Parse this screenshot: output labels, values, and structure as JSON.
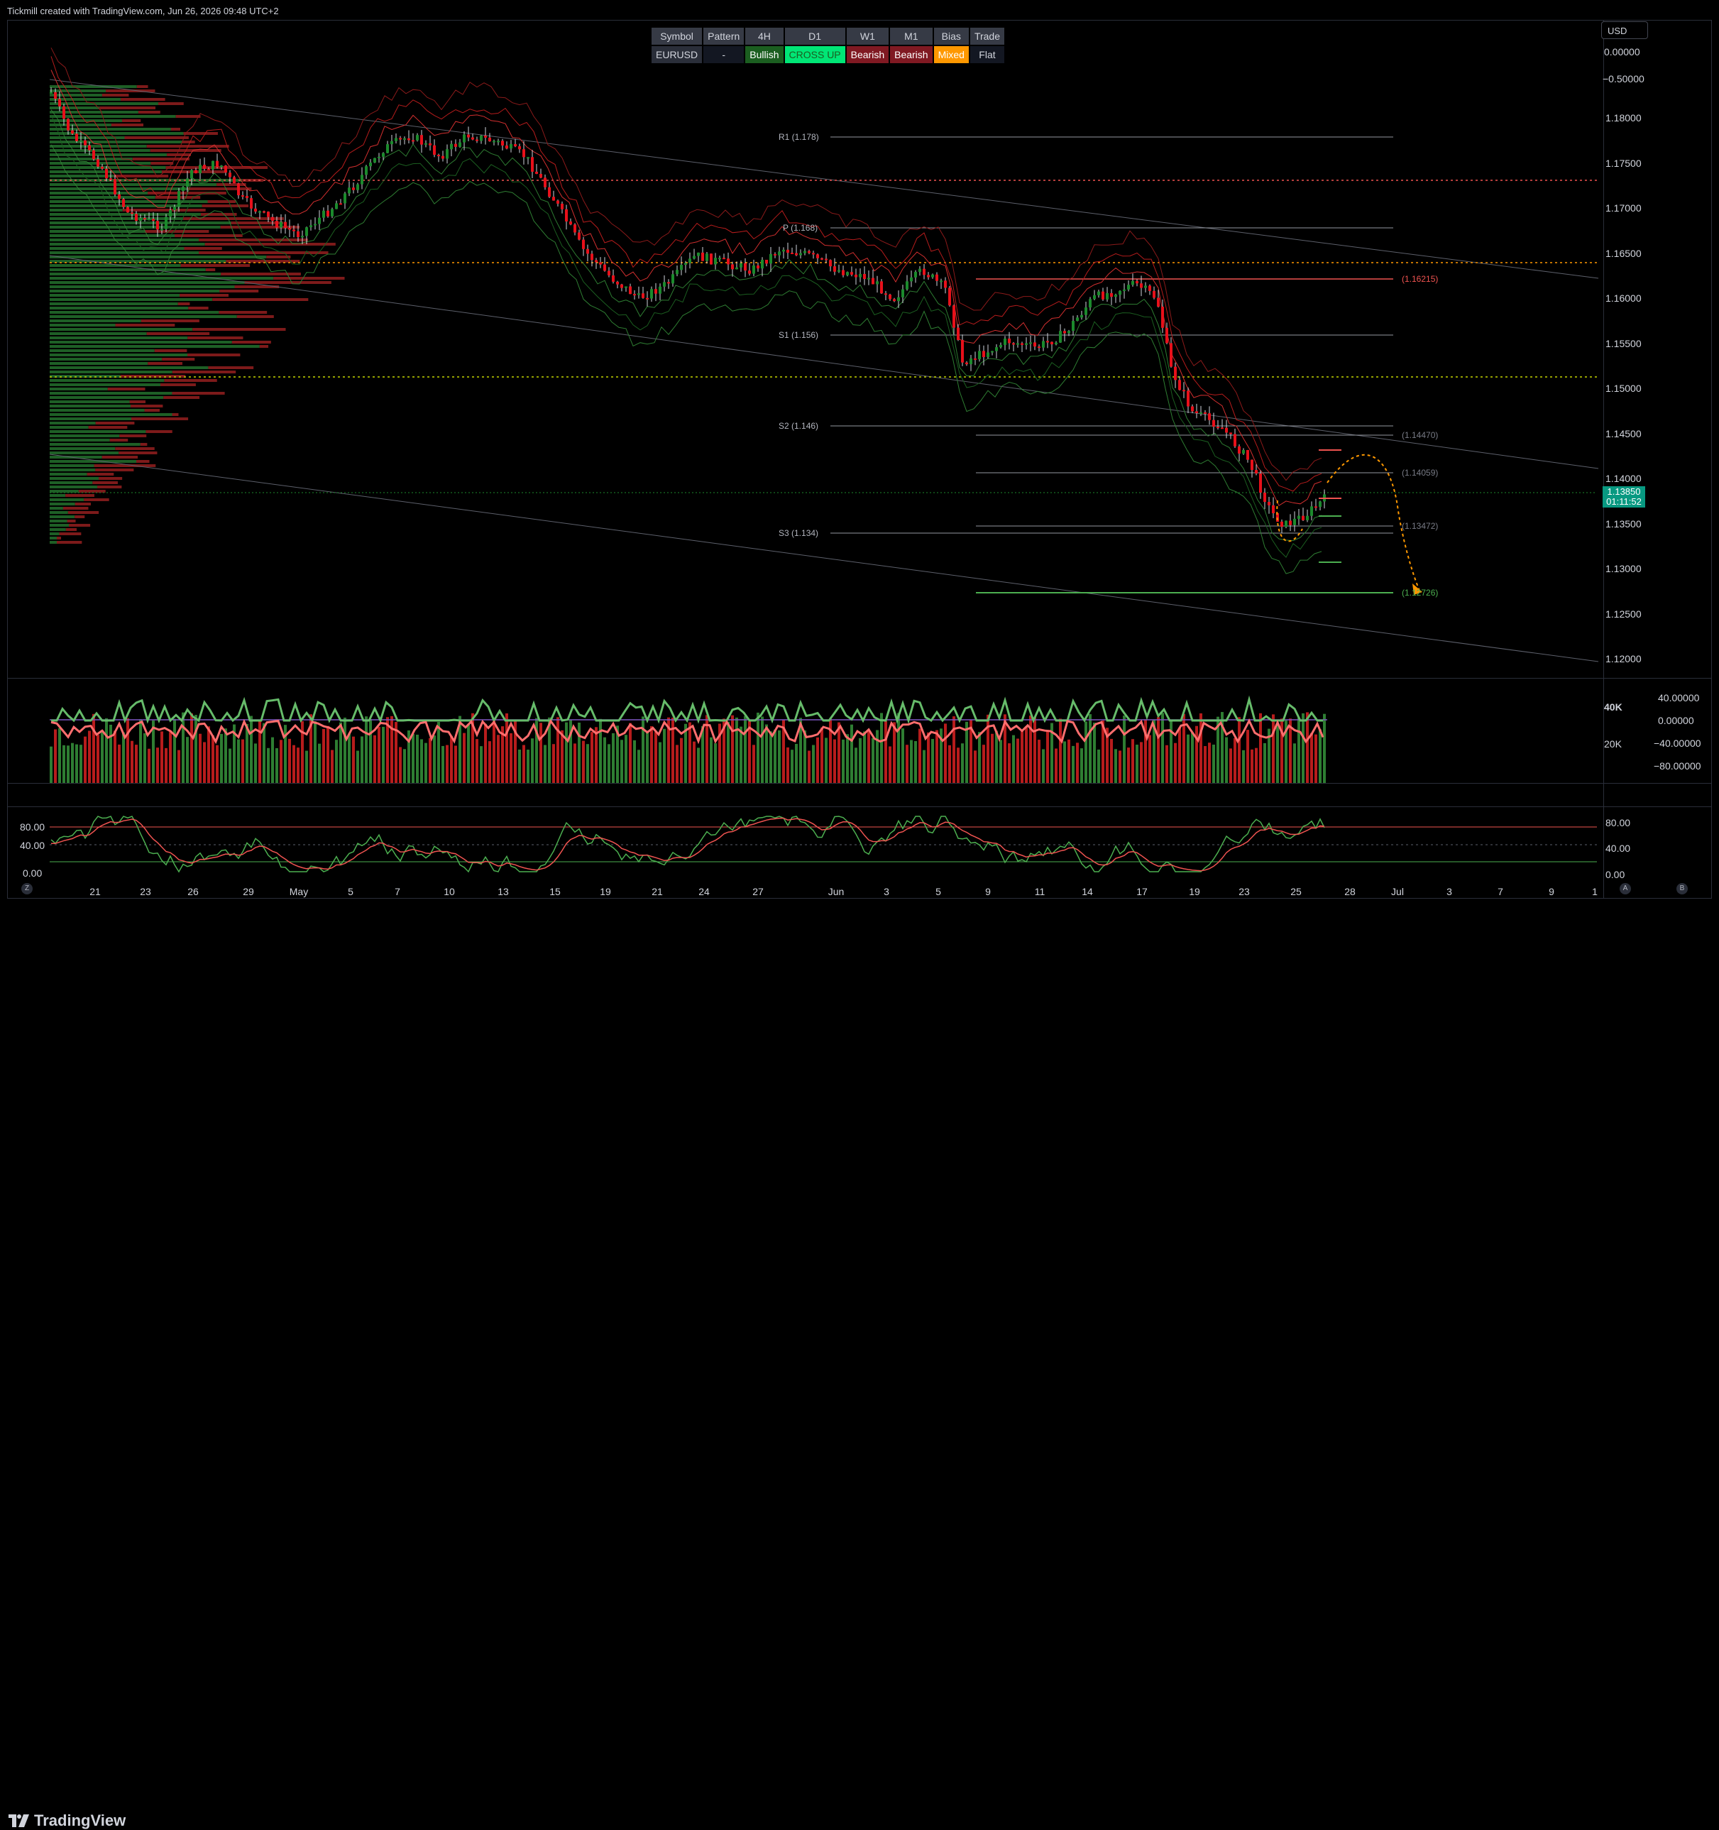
{
  "header": {
    "title": "Tickmill created with TradingView.com, Jun 26, 2026 09:48 UTC+2"
  },
  "currency_button": "USD",
  "status_table": {
    "headers": [
      "Symbol",
      "Pattern",
      "4H",
      "D1",
      "W1",
      "M1",
      "Bias",
      "Trade"
    ],
    "values": [
      "EURUSD",
      "-",
      "Bullish",
      "CROSS UP",
      "Bearish",
      "Bearish",
      "Mixed",
      "Flat"
    ]
  },
  "main_pane": {
    "price_ticks": [
      "0.00000",
      "−0.50000",
      "1.18000",
      "1.17500",
      "1.17000",
      "1.16500",
      "1.16000",
      "1.15500",
      "1.15000",
      "1.14500",
      "1.14000",
      "1.13500",
      "1.13000",
      "1.12500",
      "1.12000"
    ],
    "pivot_labels": {
      "r1": "R1 (1.178)",
      "p": "P (1.168)",
      "s1": "S1 (1.156)",
      "s2": "S2 (1.146)",
      "s3": "S3 (1.134)"
    },
    "level_labels": {
      "l1": "(1.16215)",
      "l2": "(1.14470)",
      "l3": "(1.14059)",
      "l4": "(1.13472)",
      "l5": "(1.12726)"
    },
    "current_price": "1.13850",
    "countdown": "01:11:52",
    "colors": {
      "up": "#26a69a",
      "down": "#ef5350",
      "bull_candle": "#1b8a2c",
      "bear_candle": "#e8101a"
    }
  },
  "volume_pane": {
    "scale_label": "40K",
    "scale_label2": "20K",
    "right_ticks": [
      "40.00000",
      "0.00000",
      "−40.00000",
      "−80.00000"
    ]
  },
  "stoch_pane": {
    "left_ticks": [
      "80.00",
      "40.00",
      "0.00"
    ],
    "right_ticks": [
      "80.00",
      "40.00",
      "0.00"
    ]
  },
  "time_axis": [
    "21",
    "23",
    "26",
    "29",
    "May",
    "5",
    "7",
    "10",
    "13",
    "15",
    "19",
    "21",
    "24",
    "27",
    "Jun",
    "3",
    "5",
    "9",
    "11",
    "14",
    "17",
    "19",
    "23",
    "25",
    "28",
    "Jul",
    "3",
    "7",
    "9",
    "1"
  ],
  "footer": {
    "brand": "TradingView"
  }
}
